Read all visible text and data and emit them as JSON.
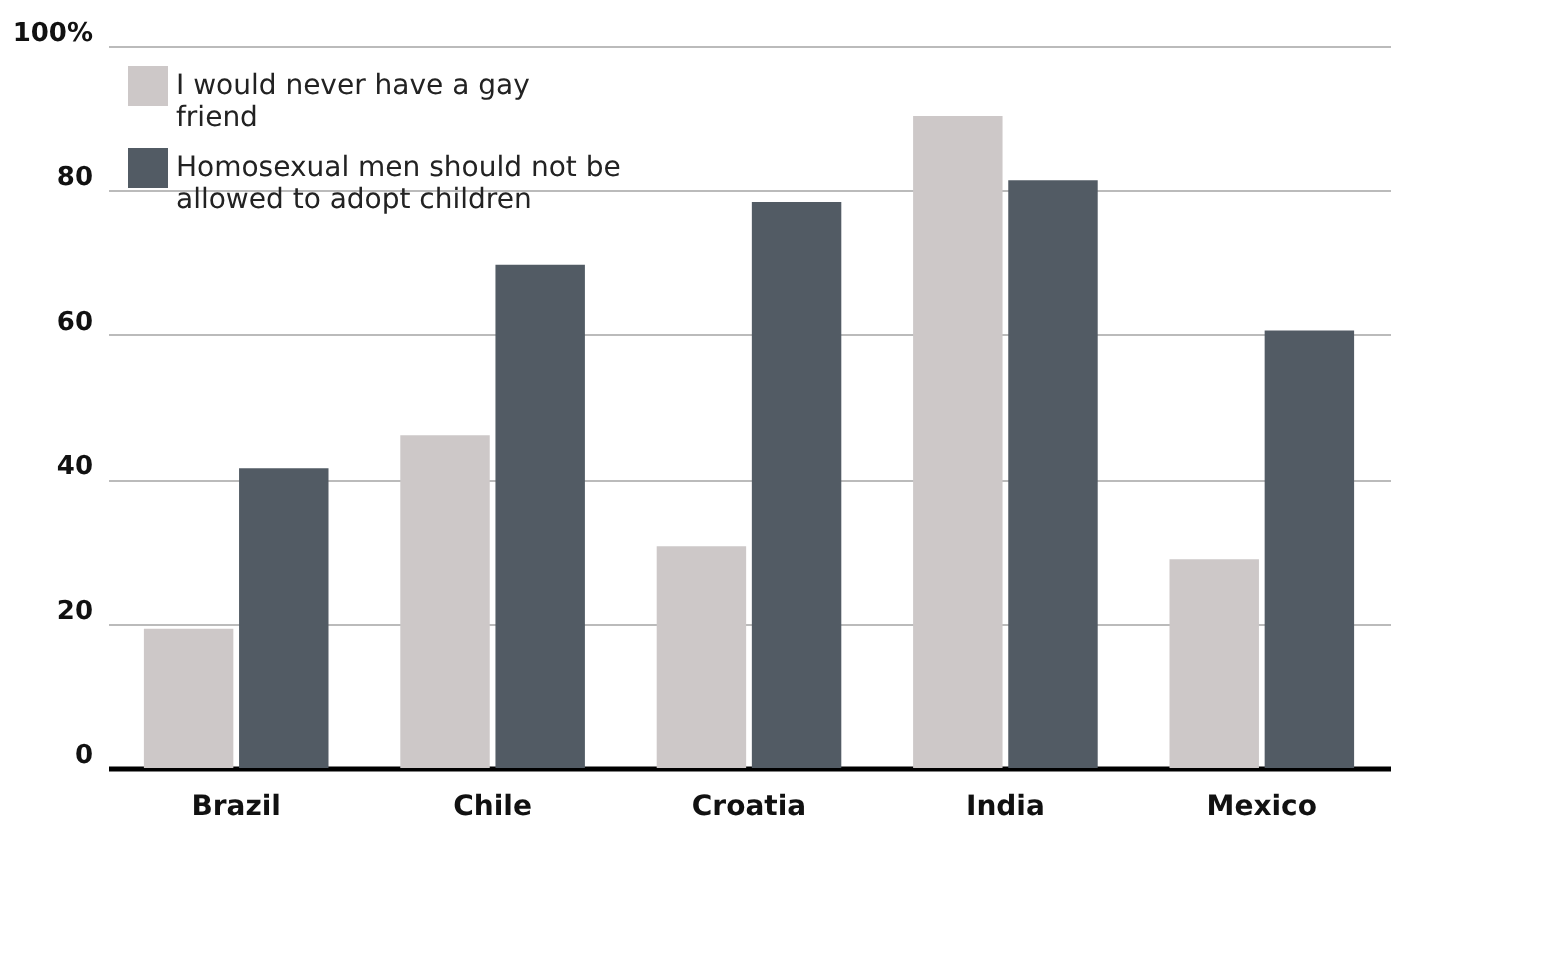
{
  "chart_data": {
    "type": "bar",
    "categories": [
      "Brazil",
      "Chile",
      "Croatia",
      "India",
      "Mexico"
    ],
    "series": [
      {
        "name": "I would never have a gay friend",
        "color": "#cdc8c8",
        "values": [
          19.3,
          46.1,
          30.7,
          90.3,
          28.9
        ]
      },
      {
        "name": "Homosexual men should not be allowed to adopt children",
        "color": "#525b64",
        "values": [
          41.5,
          69.7,
          78.4,
          81.4,
          60.6
        ]
      }
    ],
    "ylim": [
      0,
      100
    ],
    "yticks": [
      0,
      20,
      40,
      60,
      80,
      {
        "value": 100,
        "label": "100%"
      }
    ],
    "grid": "y",
    "legend": "top left"
  }
}
